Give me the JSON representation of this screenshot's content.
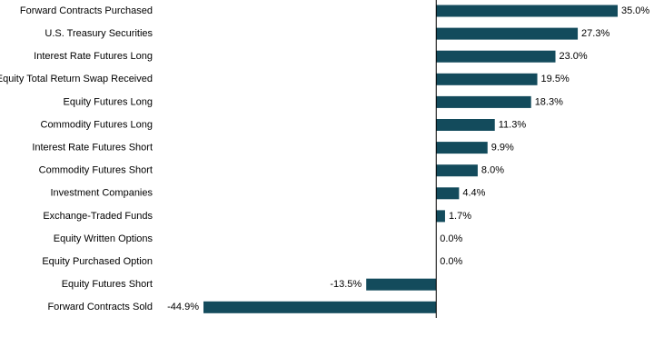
{
  "chart_data": {
    "type": "hbar",
    "categories": [
      "Forward Contracts Purchased",
      "U.S. Treasury Securities",
      "Interest Rate Futures Long",
      "Equity Total Return Swap Received",
      "Equity Futures Long",
      "Commodity Futures Long",
      "Interest Rate Futures Short",
      "Commodity Futures Short",
      "Investment Companies",
      "Exchange-Traded Funds",
      "Equity Written Options",
      "Equity Purchased Option",
      "Equity Futures Short",
      "Forward Contracts Sold"
    ],
    "values": [
      35.0,
      27.3,
      23.0,
      19.5,
      18.3,
      11.3,
      9.9,
      8.0,
      4.4,
      1.7,
      0.0,
      0.0,
      -13.5,
      -44.9
    ],
    "value_labels": [
      "35.0%",
      "27.3%",
      "23.0%",
      "19.5%",
      "18.3%",
      "11.3%",
      "9.9%",
      "8.0%",
      "4.4%",
      "1.7%",
      "0.0%",
      "0.0%",
      "-13.5%",
      "-44.9%"
    ],
    "color": "#134b5c"
  }
}
